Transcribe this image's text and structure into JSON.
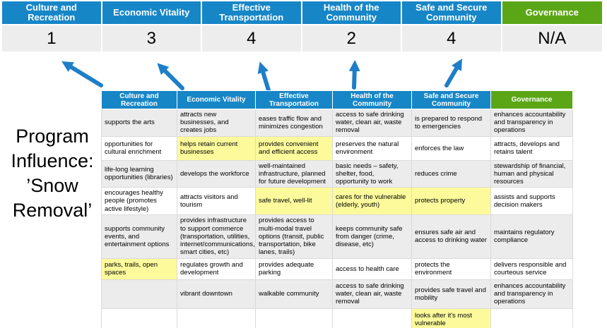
{
  "title": "Program Influence: ’Snow Removal’",
  "colors": {
    "header_blue": "#1786C7",
    "header_green": "#5BA616",
    "highlight_yellow": "#FDFA9C",
    "score_row_bg": "#EDEDED",
    "alt_row_bg": "#ECECEC",
    "arrow_blue": "#1E7EC8"
  },
  "summary": {
    "columns": [
      {
        "label": "Culture and Recreation",
        "score": "1"
      },
      {
        "label": "Economic Vitality",
        "score": "3"
      },
      {
        "label": "Effective Transportation",
        "score": "4"
      },
      {
        "label": "Health of the Community",
        "score": "2"
      },
      {
        "label": "Safe and Secure Community",
        "score": "4"
      },
      {
        "label": "Governance",
        "score": "N/A"
      }
    ]
  },
  "matrix": {
    "headers": [
      "Culture and Recreation",
      "Economic Vitality",
      "Effective Transportation",
      "Health of the Community",
      "Safe and Secure Community",
      "Governance"
    ],
    "rows": [
      [
        {
          "text": "supports the arts",
          "highlight": false
        },
        {
          "text": "attracts new businesses, and creates jobs",
          "highlight": false
        },
        {
          "text": "eases traffic flow and minimizes congestion",
          "highlight": true
        },
        {
          "text": "access to safe drinking water, clean air, waste removal",
          "highlight": false
        },
        {
          "text": "is prepared to respond to emergencies",
          "highlight": true
        },
        {
          "text": "enhances accountability and transparency in operations",
          "highlight": false
        }
      ],
      [
        {
          "text": "opportunities for cultural enrichment",
          "highlight": false
        },
        {
          "text": "helps retain current businesses",
          "highlight": true
        },
        {
          "text": "provides convenient and efficient access",
          "highlight": true
        },
        {
          "text": "preserves the natural environment",
          "highlight": false
        },
        {
          "text": "enforces the law",
          "highlight": false
        },
        {
          "text": "attracts, develops and retains talent",
          "highlight": false
        }
      ],
      [
        {
          "text": "life-long learning opportunities (libraries)",
          "highlight": false
        },
        {
          "text": "develops the workforce",
          "highlight": false
        },
        {
          "text": "well-maintained infrastructure, planned for future development",
          "highlight": false
        },
        {
          "text": "basic needs – safety, shelter, food, opportunity to work",
          "highlight": true
        },
        {
          "text": "reduces crime",
          "highlight": false
        },
        {
          "text": "stewardship of financial, human and physical resources",
          "highlight": false
        }
      ],
      [
        {
          "text": "encourages healthy people (promotes active lifestyle)",
          "highlight": false
        },
        {
          "text": "attracts visitors and tourism",
          "highlight": false
        },
        {
          "text": "safe travel, well-lit",
          "highlight": true
        },
        {
          "text": "cares for the vulnerable (elderly, youth)",
          "highlight": true
        },
        {
          "text": "protects property",
          "highlight": true
        },
        {
          "text": "assists and supports decision makers",
          "highlight": false
        }
      ],
      [
        {
          "text": "supports community events, and entertainment options",
          "highlight": false
        },
        {
          "text": "provides infrastructure to support commerce (transportation, utilities, internet/communications, smart cities, etc)",
          "highlight": true
        },
        {
          "text": "provides access to multi-modal travel options (transit, public transportation, bike lanes, trails)",
          "highlight": true
        },
        {
          "text": "keeps community safe from danger (crime, disease, etc)",
          "highlight": true
        },
        {
          "text": "ensures safe air and access to drinking water",
          "highlight": false
        },
        {
          "text": "maintains regulatory compliance",
          "highlight": false
        }
      ],
      [
        {
          "text": "parks, trails, open spaces",
          "highlight": true
        },
        {
          "text": "regulates growth and development",
          "highlight": false
        },
        {
          "text": "provides adequate parking",
          "highlight": false
        },
        {
          "text": "access to health care",
          "highlight": false
        },
        {
          "text": "protects the environment",
          "highlight": false
        },
        {
          "text": "delivers responsible and courteous service",
          "highlight": false
        }
      ],
      [
        {
          "text": "",
          "highlight": false
        },
        {
          "text": "vibrant downtown",
          "highlight": false
        },
        {
          "text": "walkable community",
          "highlight": false
        },
        {
          "text": "access to safe drinking water, clean air, waste removal",
          "highlight": false
        },
        {
          "text": "provides safe travel and mobility",
          "highlight": true
        },
        {
          "text": "enhances accountability and transparency in operations",
          "highlight": false
        }
      ],
      [
        {
          "text": "",
          "highlight": false
        },
        {
          "text": "",
          "highlight": false
        },
        {
          "text": "",
          "highlight": false
        },
        {
          "text": "",
          "highlight": false
        },
        {
          "text": "looks after it's most vulnerable",
          "highlight": true
        },
        {
          "text": "",
          "highlight": false
        }
      ]
    ]
  }
}
